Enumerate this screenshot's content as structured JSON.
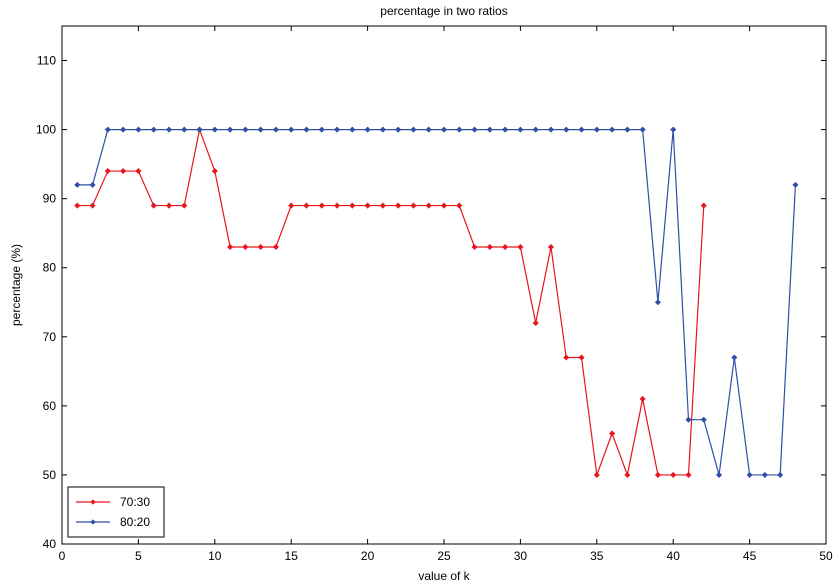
{
  "chart_data": {
    "type": "line",
    "title": "percentage in two ratios",
    "xlabel": "value of k",
    "ylabel": "percentage (%)",
    "xlim": [
      0,
      50
    ],
    "ylim": [
      40,
      115
    ],
    "xticks": [
      0,
      5,
      10,
      15,
      20,
      25,
      30,
      35,
      40,
      45,
      50
    ],
    "yticks": [
      40,
      50,
      60,
      70,
      80,
      90,
      100,
      110
    ],
    "grid": false,
    "legend_position": "bottom-left",
    "series": [
      {
        "name": "70:30",
        "color": "#e8141e",
        "marker": "diamond",
        "x": [
          1,
          2,
          3,
          4,
          5,
          6,
          7,
          8,
          9,
          10,
          11,
          12,
          13,
          14,
          15,
          16,
          17,
          18,
          19,
          20,
          21,
          22,
          23,
          24,
          25,
          26,
          27,
          28,
          29,
          30,
          31,
          32,
          33,
          34,
          35,
          36,
          37,
          38,
          39,
          40,
          41,
          42
        ],
        "y": [
          89,
          89,
          94,
          94,
          94,
          89,
          89,
          89,
          100,
          94,
          83,
          83,
          83,
          83,
          89,
          89,
          89,
          89,
          89,
          89,
          89,
          89,
          89,
          89,
          89,
          89,
          83,
          83,
          83,
          83,
          72,
          83,
          67,
          67,
          50,
          56,
          50,
          61,
          50,
          50,
          50,
          89
        ]
      },
      {
        "name": "80:20",
        "color": "#2f4fa8",
        "marker": "diamond",
        "x": [
          1,
          2,
          3,
          4,
          5,
          6,
          7,
          8,
          9,
          10,
          11,
          12,
          13,
          14,
          15,
          16,
          17,
          18,
          19,
          20,
          21,
          22,
          23,
          24,
          25,
          26,
          27,
          28,
          29,
          30,
          31,
          32,
          33,
          34,
          35,
          36,
          37,
          38,
          39,
          40,
          41,
          42,
          43,
          44,
          45,
          46,
          47,
          48
        ],
        "y": [
          92,
          92,
          100,
          100,
          100,
          100,
          100,
          100,
          100,
          100,
          100,
          100,
          100,
          100,
          100,
          100,
          100,
          100,
          100,
          100,
          100,
          100,
          100,
          100,
          100,
          100,
          100,
          100,
          100,
          100,
          100,
          100,
          100,
          100,
          100,
          100,
          100,
          100,
          75,
          100,
          58,
          58,
          50,
          67,
          50,
          50,
          50,
          92
        ]
      }
    ]
  }
}
